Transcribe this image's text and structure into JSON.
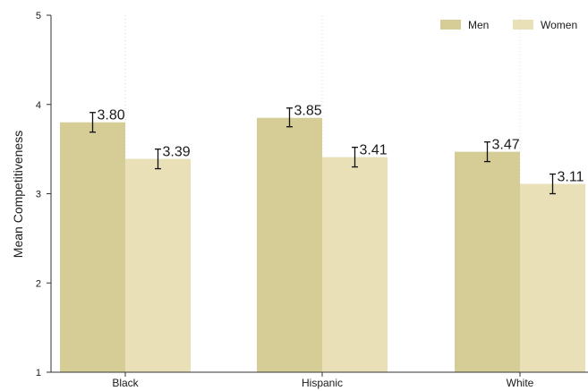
{
  "chart_data": {
    "type": "bar",
    "ylabel": "Mean Competitiveness",
    "xlabel": "",
    "ylim": [
      1,
      5
    ],
    "yticks": [
      "1",
      "2",
      "3",
      "4",
      "5"
    ],
    "grid": "vertical dotted lines at category centers",
    "legend_position": "top-right",
    "categories": [
      "Black",
      "Hispanic",
      "White"
    ],
    "series": [
      {
        "name": "Men",
        "color": "#d5cc96",
        "values": [
          3.8,
          3.85,
          3.47
        ],
        "labels": [
          "3.80",
          "3.85",
          "3.47"
        ],
        "ci_low": [
          3.69,
          3.75,
          3.36
        ],
        "ci_high": [
          3.91,
          3.96,
          3.58
        ]
      },
      {
        "name": "Women",
        "color": "#e9e0b7",
        "values": [
          3.39,
          3.41,
          3.11
        ],
        "labels": [
          "3.39",
          "3.41",
          "3.11"
        ],
        "ci_low": [
          3.28,
          3.3,
          3.0
        ],
        "ci_high": [
          3.5,
          3.52,
          3.22
        ]
      }
    ]
  }
}
